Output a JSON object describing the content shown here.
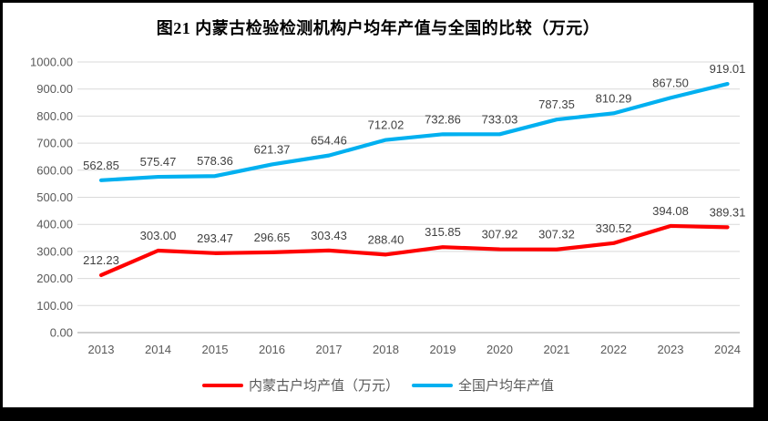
{
  "chart_data": {
    "type": "line",
    "title": "图21 内蒙古检验检测机构户均年产值与全国的比较（万元）",
    "categories": [
      "2013",
      "2014",
      "2015",
      "2016",
      "2017",
      "2018",
      "2019",
      "2020",
      "2021",
      "2022",
      "2023",
      "2024"
    ],
    "series": [
      {
        "name": "内蒙古户均产值（万元）",
        "color": "#FF0000",
        "values": [
          212.23,
          303.0,
          293.47,
          296.65,
          303.43,
          288.4,
          315.85,
          307.92,
          307.32,
          330.52,
          394.08,
          389.31
        ]
      },
      {
        "name": "全国户均年产值",
        "color": "#00B0F0",
        "values": [
          562.85,
          575.47,
          578.36,
          621.37,
          654.46,
          712.02,
          732.86,
          733.03,
          787.35,
          810.29,
          867.5,
          919.01
        ]
      }
    ],
    "xlabel": "",
    "ylabel": "",
    "ylim": [
      0,
      1000
    ],
    "ytick_step": 100,
    "ytick_labels": [
      "0.00",
      "100.00",
      "200.00",
      "300.00",
      "400.00",
      "500.00",
      "600.00",
      "700.00",
      "800.00",
      "900.00",
      "1000.00"
    ],
    "grid": "horizontal",
    "legend_position": "bottom",
    "colors": {
      "gridline": "#D9D9D9",
      "axis_line": "#BFBFBF",
      "tick_label": "#595959",
      "data_label": "#404040",
      "frame_border": "#000000"
    }
  }
}
